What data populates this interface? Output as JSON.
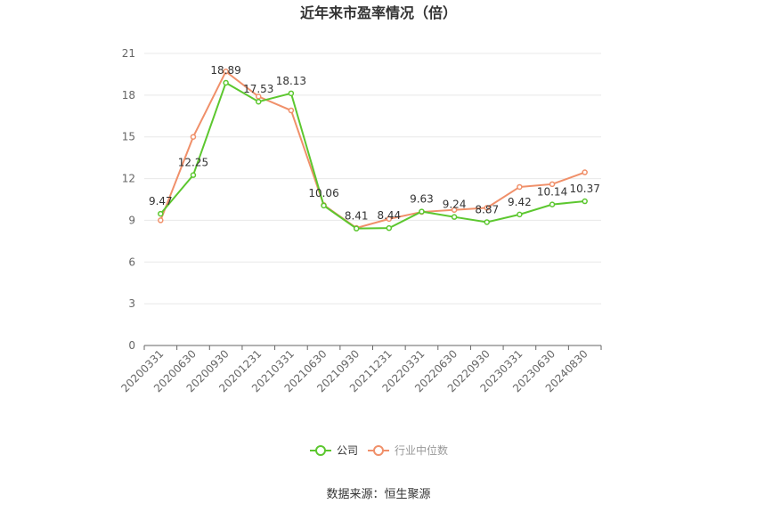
{
  "chart_data": {
    "type": "line",
    "title": "近年来市盈率情况（倍）",
    "categories": [
      "20200331",
      "20200630",
      "20200930",
      "20201231",
      "20210331",
      "20210630",
      "20210930",
      "20211231",
      "20220331",
      "20220630",
      "20220930",
      "20230331",
      "20230630",
      "20240830"
    ],
    "series": [
      {
        "name": "公司",
        "color": "#5CC72F",
        "values": [
          9.47,
          12.25,
          18.89,
          17.53,
          18.13,
          10.06,
          8.41,
          8.44,
          9.63,
          9.24,
          8.87,
          9.42,
          10.14,
          10.37
        ],
        "labels": [
          "9.47",
          "12.25",
          "18.89",
          "17.53",
          "18.13",
          "10.06",
          "8.41",
          "8.44",
          "9.63",
          "9.24",
          "8.87",
          "9.42",
          "10.14",
          "10.37"
        ]
      },
      {
        "name": "行业中位数",
        "color": "#F0906A",
        "values": [
          9.0,
          15.0,
          19.7,
          17.9,
          16.9,
          10.1,
          8.45,
          9.1,
          9.6,
          9.75,
          9.9,
          11.4,
          11.6,
          12.45
        ]
      }
    ],
    "ylim": [
      0,
      21
    ],
    "yticks": [
      "0",
      "3",
      "6",
      "9",
      "12",
      "15",
      "18",
      "21"
    ],
    "grid": true,
    "legend_position": "bottom"
  },
  "source_text": "数据来源：恒生聚源"
}
